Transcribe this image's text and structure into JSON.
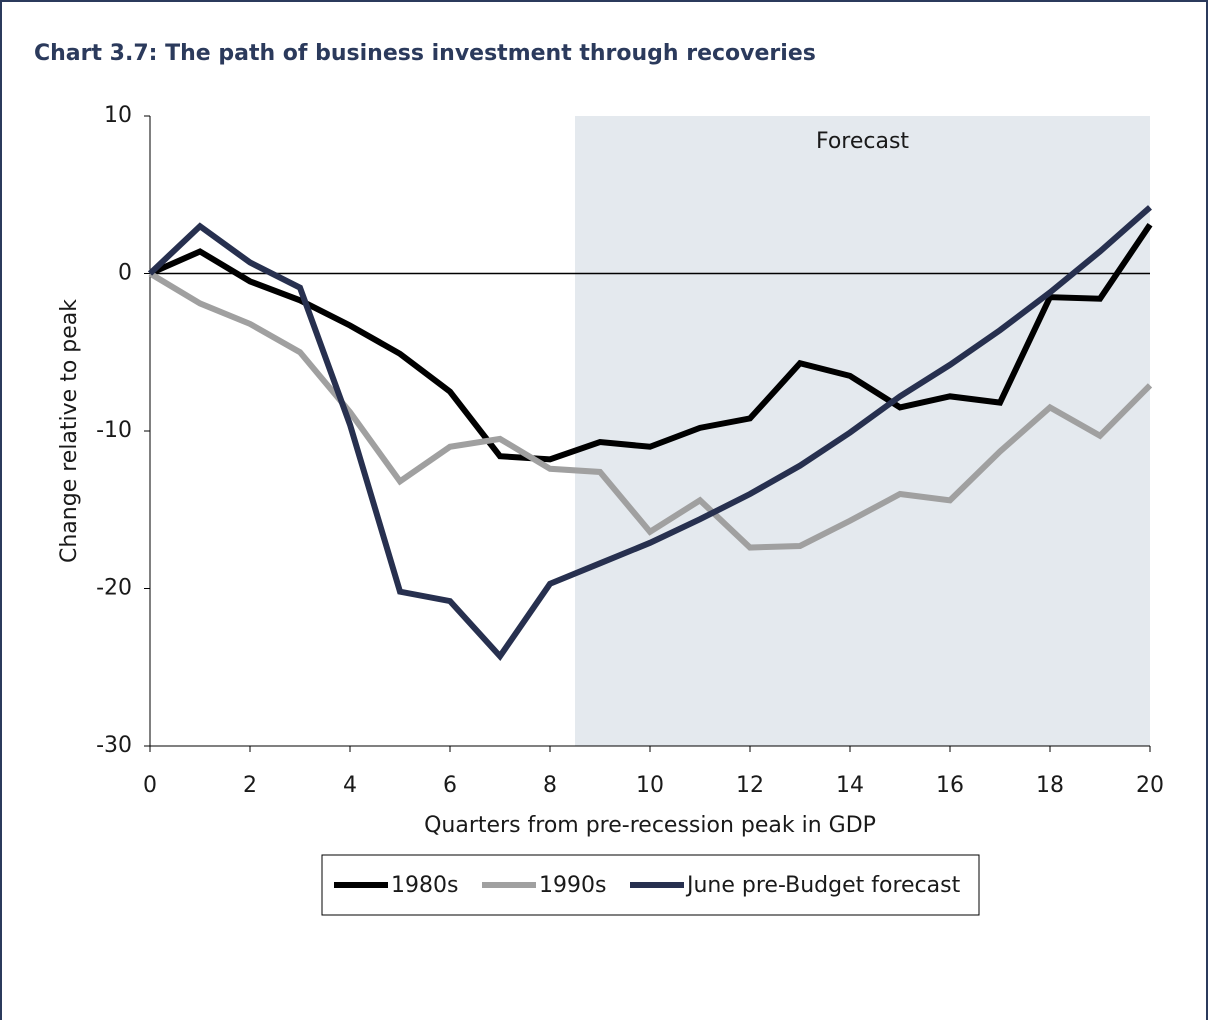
{
  "chart_data": {
    "type": "line",
    "title": "Chart 3.7: The path of business investment through recoveries",
    "xlabel": "Quarters from pre-recession peak in GDP",
    "ylabel": "Change relative to peak",
    "x": [
      0,
      1,
      2,
      3,
      4,
      5,
      6,
      7,
      8,
      9,
      10,
      11,
      12,
      13,
      14,
      15,
      16,
      17,
      18,
      19,
      20
    ],
    "series": [
      {
        "name": "1980s",
        "color": "#000000",
        "values": [
          0,
          1.4,
          -0.5,
          -1.7,
          -3.3,
          -5.1,
          -7.5,
          -11.6,
          -11.8,
          -10.7,
          -11.0,
          -9.8,
          -9.2,
          -5.7,
          -6.5,
          -8.5,
          -7.8,
          -8.2,
          -1.5,
          -1.6,
          3.1
        ]
      },
      {
        "name": "1990s",
        "color": "#a0a0a0",
        "values": [
          0,
          -1.9,
          -3.2,
          -5.0,
          -8.8,
          -13.2,
          -11.0,
          -10.5,
          -12.4,
          -12.6,
          -16.4,
          -14.4,
          -17.4,
          -17.3,
          -15.7,
          -14.0,
          -14.4,
          -11.3,
          -8.5,
          -10.3,
          -7.1
        ]
      },
      {
        "name": "June pre-Budget forecast",
        "color": "#27304f",
        "values": [
          0,
          3.0,
          0.7,
          -0.9,
          -9.6,
          -20.2,
          -20.8,
          -24.3,
          -19.7,
          -18.4,
          -17.1,
          -15.6,
          -14.0,
          -12.2,
          -10.1,
          -7.8,
          -5.8,
          -3.6,
          -1.2,
          1.4,
          4.2
        ]
      }
    ],
    "shaded_region": {
      "label": "Forecast",
      "xrange": [
        8.5,
        20
      ],
      "color": "#e4e9ee"
    },
    "xlim": [
      0,
      20
    ],
    "xticks": [
      0,
      2,
      4,
      6,
      8,
      10,
      12,
      14,
      16,
      18,
      20
    ],
    "ylim": [
      -30,
      10
    ],
    "yticks": [
      -30,
      -20,
      -10,
      0,
      10
    ],
    "legend": "bottom"
  }
}
